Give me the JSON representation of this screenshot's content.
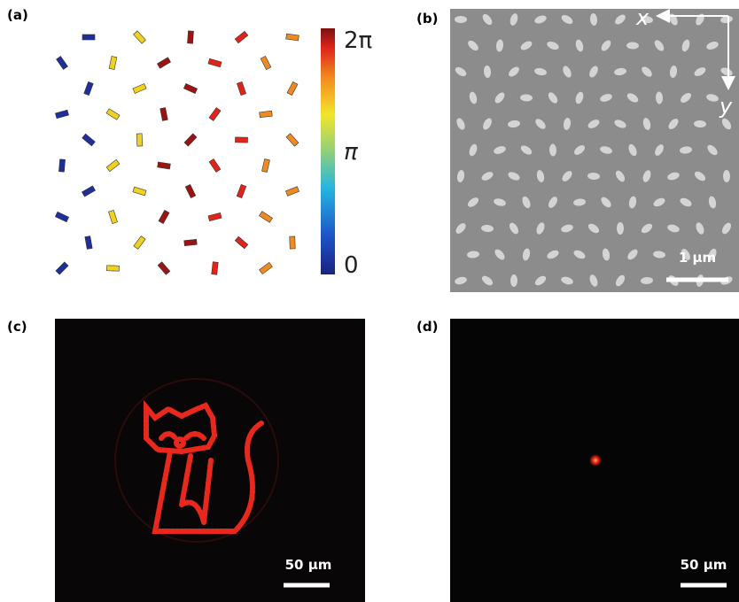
{
  "panels": [
    {
      "label": "(a)",
      "colorbar": {
        "labels": [
          "2π",
          "π",
          "0"
        ]
      }
    },
    {
      "label": "(b)",
      "axes": [
        "x",
        "y"
      ],
      "scale_bar": "1 µm"
    },
    {
      "label": "(c)",
      "scale_bar": "50 µm"
    },
    {
      "label": "(d)",
      "scale_bar": "50 µm"
    }
  ]
}
